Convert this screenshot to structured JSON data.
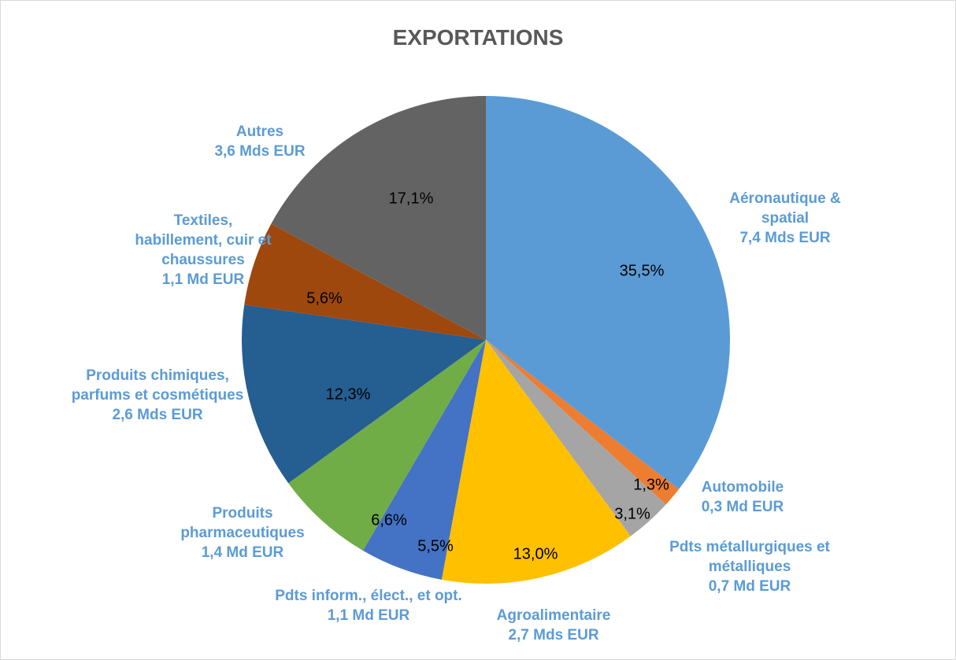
{
  "chart_data": {
    "type": "pie",
    "title": "EXPORTATIONS",
    "categories": [
      "Aéronautique & spatial",
      "Automobile",
      "Pdts métallurgiques et métalliques",
      "Agroalimentaire",
      "Pdts inform., élect., et opt.",
      "Produits pharmaceutiques",
      "Produits chimiques, parfums et cosmétiques",
      "Textiles, habillement, cuir et chaussures",
      "Autres"
    ],
    "amounts": [
      "7,4 Mds EUR",
      "0,3 Md EUR",
      "0,7 Md EUR",
      "2,7 Mds EUR",
      "1,1 Md EUR",
      "1,4 Md EUR",
      "2,6 Mds EUR",
      "1,1 Md EUR",
      "3,6 Mds EUR"
    ],
    "values": [
      35.5,
      1.3,
      3.1,
      13.0,
      5.5,
      6.6,
      12.3,
      5.6,
      17.1
    ],
    "value_labels": [
      "35,5%",
      "1,3%",
      "3,1%",
      "13,0%",
      "5,5%",
      "6,6%",
      "12,3%",
      "5,6%",
      "17,1%"
    ],
    "colors": [
      "#5b9bd5",
      "#ed7d31",
      "#a5a5a5",
      "#ffc000",
      "#4472c4",
      "#70ad47",
      "#255e91",
      "#9e480e",
      "#636363"
    ]
  }
}
